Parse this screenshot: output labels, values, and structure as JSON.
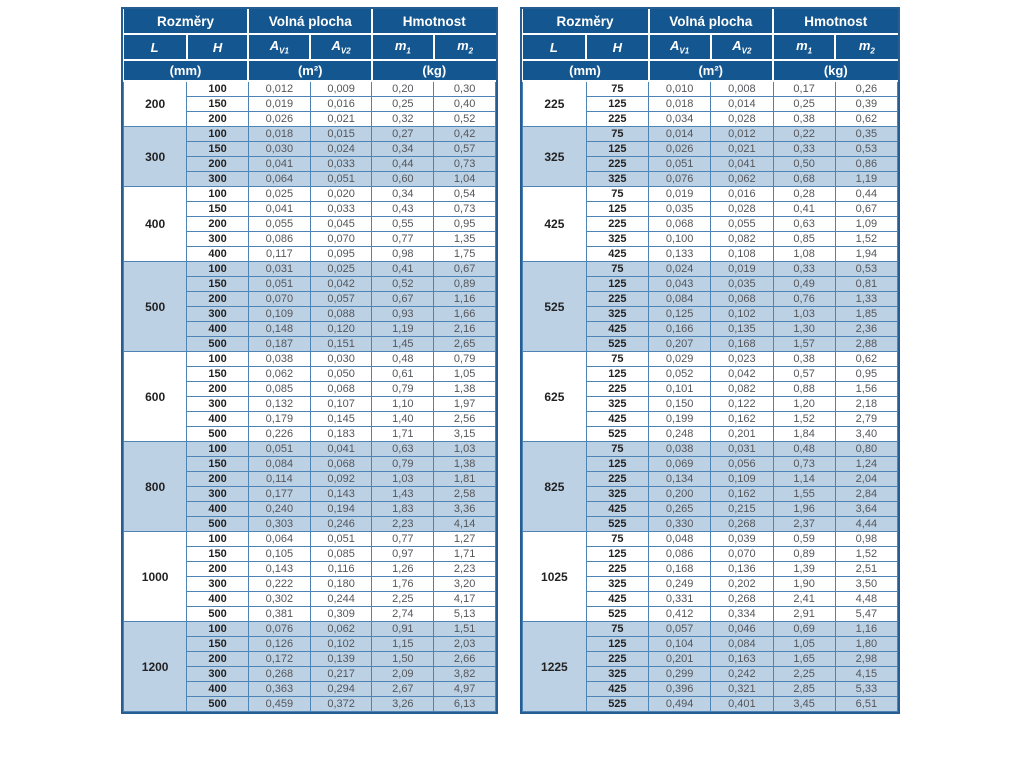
{
  "colors": {
    "header_bg": "#14568f",
    "header_text": "#ffffff",
    "shaded_row_bg": "#bdd1e5",
    "grid_border": "#4d83b5",
    "outer_border": "#265d92",
    "value_text": "#54565a",
    "bold_text": "#222222"
  },
  "header": {
    "rozmery": "Rozměry",
    "volna_plocha": "Volná plocha",
    "hmotnost": "Hmotnost",
    "L": "L",
    "H": "H",
    "A": "A",
    "V1": "V1",
    "V2": "V2",
    "m": "m",
    "sub1": "1",
    "sub2": "2",
    "unit_mm": "(mm)",
    "unit_m2": "(m²)",
    "unit_kg": "(kg)"
  },
  "left_table": {
    "groups": [
      {
        "L": "200",
        "shaded": false,
        "rows": [
          [
            "100",
            "0,012",
            "0,009",
            "0,20",
            "0,30"
          ],
          [
            "150",
            "0,019",
            "0,016",
            "0,25",
            "0,40"
          ],
          [
            "200",
            "0,026",
            "0,021",
            "0,32",
            "0,52"
          ]
        ]
      },
      {
        "L": "300",
        "shaded": true,
        "rows": [
          [
            "100",
            "0,018",
            "0,015",
            "0,27",
            "0,42"
          ],
          [
            "150",
            "0,030",
            "0,024",
            "0,34",
            "0,57"
          ],
          [
            "200",
            "0,041",
            "0,033",
            "0,44",
            "0,73"
          ],
          [
            "300",
            "0,064",
            "0,051",
            "0,60",
            "1,04"
          ]
        ]
      },
      {
        "L": "400",
        "shaded": false,
        "rows": [
          [
            "100",
            "0,025",
            "0,020",
            "0,34",
            "0,54"
          ],
          [
            "150",
            "0,041",
            "0,033",
            "0,43",
            "0,73"
          ],
          [
            "200",
            "0,055",
            "0,045",
            "0,55",
            "0,95"
          ],
          [
            "300",
            "0,086",
            "0,070",
            "0,77",
            "1,35"
          ],
          [
            "400",
            "0,117",
            "0,095",
            "0,98",
            "1,75"
          ]
        ]
      },
      {
        "L": "500",
        "shaded": true,
        "rows": [
          [
            "100",
            "0,031",
            "0,025",
            "0,41",
            "0,67"
          ],
          [
            "150",
            "0,051",
            "0,042",
            "0,52",
            "0,89"
          ],
          [
            "200",
            "0,070",
            "0,057",
            "0,67",
            "1,16"
          ],
          [
            "300",
            "0,109",
            "0,088",
            "0,93",
            "1,66"
          ],
          [
            "400",
            "0,148",
            "0,120",
            "1,19",
            "2,16"
          ],
          [
            "500",
            "0,187",
            "0,151",
            "1,45",
            "2,65"
          ]
        ]
      },
      {
        "L": "600",
        "shaded": false,
        "rows": [
          [
            "100",
            "0,038",
            "0,030",
            "0,48",
            "0,79"
          ],
          [
            "150",
            "0,062",
            "0,050",
            "0,61",
            "1,05"
          ],
          [
            "200",
            "0,085",
            "0,068",
            "0,79",
            "1,38"
          ],
          [
            "300",
            "0,132",
            "0,107",
            "1,10",
            "1,97"
          ],
          [
            "400",
            "0,179",
            "0,145",
            "1,40",
            "2,56"
          ],
          [
            "500",
            "0,226",
            "0,183",
            "1,71",
            "3,15"
          ]
        ]
      },
      {
        "L": "800",
        "shaded": true,
        "rows": [
          [
            "100",
            "0,051",
            "0,041",
            "0,63",
            "1,03"
          ],
          [
            "150",
            "0,084",
            "0,068",
            "0,79",
            "1,38"
          ],
          [
            "200",
            "0,114",
            "0,092",
            "1,03",
            "1,81"
          ],
          [
            "300",
            "0,177",
            "0,143",
            "1,43",
            "2,58"
          ],
          [
            "400",
            "0,240",
            "0,194",
            "1,83",
            "3,36"
          ],
          [
            "500",
            "0,303",
            "0,246",
            "2,23",
            "4,14"
          ]
        ]
      },
      {
        "L": "1000",
        "shaded": false,
        "rows": [
          [
            "100",
            "0,064",
            "0,051",
            "0,77",
            "1,27"
          ],
          [
            "150",
            "0,105",
            "0,085",
            "0,97",
            "1,71"
          ],
          [
            "200",
            "0,143",
            "0,116",
            "1,26",
            "2,23"
          ],
          [
            "300",
            "0,222",
            "0,180",
            "1,76",
            "3,20"
          ],
          [
            "400",
            "0,302",
            "0,244",
            "2,25",
            "4,17"
          ],
          [
            "500",
            "0,381",
            "0,309",
            "2,74",
            "5,13"
          ]
        ]
      },
      {
        "L": "1200",
        "shaded": true,
        "rows": [
          [
            "100",
            "0,076",
            "0,062",
            "0,91",
            "1,51"
          ],
          [
            "150",
            "0,126",
            "0,102",
            "1,15",
            "2,03"
          ],
          [
            "200",
            "0,172",
            "0,139",
            "1,50",
            "2,66"
          ],
          [
            "300",
            "0,268",
            "0,217",
            "2,09",
            "3,82"
          ],
          [
            "400",
            "0,363",
            "0,294",
            "2,67",
            "4,97"
          ],
          [
            "500",
            "0,459",
            "0,372",
            "3,26",
            "6,13"
          ]
        ]
      }
    ]
  },
  "right_table": {
    "groups": [
      {
        "L": "225",
        "shaded": false,
        "rows": [
          [
            "75",
            "0,010",
            "0,008",
            "0,17",
            "0,26"
          ],
          [
            "125",
            "0,018",
            "0,014",
            "0,25",
            "0,39"
          ],
          [
            "225",
            "0,034",
            "0,028",
            "0,38",
            "0,62"
          ]
        ]
      },
      {
        "L": "325",
        "shaded": true,
        "rows": [
          [
            "75",
            "0,014",
            "0,012",
            "0,22",
            "0,35"
          ],
          [
            "125",
            "0,026",
            "0,021",
            "0,33",
            "0,53"
          ],
          [
            "225",
            "0,051",
            "0,041",
            "0,50",
            "0,86"
          ],
          [
            "325",
            "0,076",
            "0,062",
            "0,68",
            "1,19"
          ]
        ]
      },
      {
        "L": "425",
        "shaded": false,
        "rows": [
          [
            "75",
            "0,019",
            "0,016",
            "0,28",
            "0,44"
          ],
          [
            "125",
            "0,035",
            "0,028",
            "0,41",
            "0,67"
          ],
          [
            "225",
            "0,068",
            "0,055",
            "0,63",
            "1,09"
          ],
          [
            "325",
            "0,100",
            "0,082",
            "0,85",
            "1,52"
          ],
          [
            "425",
            "0,133",
            "0,108",
            "1,08",
            "1,94"
          ]
        ]
      },
      {
        "L": "525",
        "shaded": true,
        "rows": [
          [
            "75",
            "0,024",
            "0,019",
            "0,33",
            "0,53"
          ],
          [
            "125",
            "0,043",
            "0,035",
            "0,49",
            "0,81"
          ],
          [
            "225",
            "0,084",
            "0,068",
            "0,76",
            "1,33"
          ],
          [
            "325",
            "0,125",
            "0,102",
            "1,03",
            "1,85"
          ],
          [
            "425",
            "0,166",
            "0,135",
            "1,30",
            "2,36"
          ],
          [
            "525",
            "0,207",
            "0,168",
            "1,57",
            "2,88"
          ]
        ]
      },
      {
        "L": "625",
        "shaded": false,
        "rows": [
          [
            "75",
            "0,029",
            "0,023",
            "0,38",
            "0,62"
          ],
          [
            "125",
            "0,052",
            "0,042",
            "0,57",
            "0,95"
          ],
          [
            "225",
            "0,101",
            "0,082",
            "0,88",
            "1,56"
          ],
          [
            "325",
            "0,150",
            "0,122",
            "1,20",
            "2,18"
          ],
          [
            "425",
            "0,199",
            "0,162",
            "1,52",
            "2,79"
          ],
          [
            "525",
            "0,248",
            "0,201",
            "1,84",
            "3,40"
          ]
        ]
      },
      {
        "L": "825",
        "shaded": true,
        "rows": [
          [
            "75",
            "0,038",
            "0,031",
            "0,48",
            "0,80"
          ],
          [
            "125",
            "0,069",
            "0,056",
            "0,73",
            "1,24"
          ],
          [
            "225",
            "0,134",
            "0,109",
            "1,14",
            "2,04"
          ],
          [
            "325",
            "0,200",
            "0,162",
            "1,55",
            "2,84"
          ],
          [
            "425",
            "0,265",
            "0,215",
            "1,96",
            "3,64"
          ],
          [
            "525",
            "0,330",
            "0,268",
            "2,37",
            "4,44"
          ]
        ]
      },
      {
        "L": "1025",
        "shaded": false,
        "rows": [
          [
            "75",
            "0,048",
            "0,039",
            "0,59",
            "0,98"
          ],
          [
            "125",
            "0,086",
            "0,070",
            "0,89",
            "1,52"
          ],
          [
            "225",
            "0,168",
            "0,136",
            "1,39",
            "2,51"
          ],
          [
            "325",
            "0,249",
            "0,202",
            "1,90",
            "3,50"
          ],
          [
            "425",
            "0,331",
            "0,268",
            "2,41",
            "4,48"
          ],
          [
            "525",
            "0,412",
            "0,334",
            "2,91",
            "5,47"
          ]
        ]
      },
      {
        "L": "1225",
        "shaded": true,
        "rows": [
          [
            "75",
            "0,057",
            "0,046",
            "0,69",
            "1,16"
          ],
          [
            "125",
            "0,104",
            "0,084",
            "1,05",
            "1,80"
          ],
          [
            "225",
            "0,201",
            "0,163",
            "1,65",
            "2,98"
          ],
          [
            "325",
            "0,299",
            "0,242",
            "2,25",
            "4,15"
          ],
          [
            "425",
            "0,396",
            "0,321",
            "2,85",
            "5,33"
          ],
          [
            "525",
            "0,494",
            "0,401",
            "3,45",
            "6,51"
          ]
        ]
      }
    ]
  }
}
